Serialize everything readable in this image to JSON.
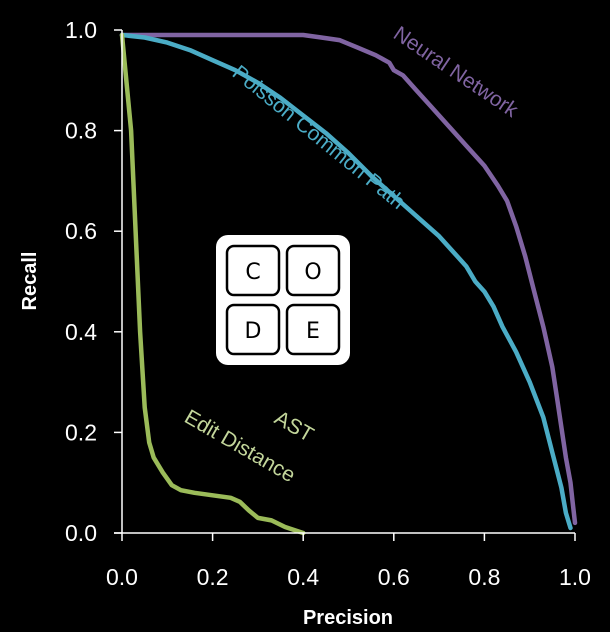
{
  "chart_data": {
    "type": "line",
    "xlabel": "Precision",
    "ylabel": "Recall",
    "xlim": [
      0,
      1
    ],
    "ylim": [
      0,
      1
    ],
    "x_ticks": [
      "0.0",
      "0.2",
      "0.4",
      "0.6",
      "0.8",
      "1.0"
    ],
    "y_ticks": [
      "0.0",
      "0.2",
      "0.4",
      "0.6",
      "0.8",
      "1.0"
    ],
    "grid": false,
    "legend": "inline labels",
    "series": [
      {
        "name": "Neural Network",
        "color": "#8064a2",
        "points": [
          [
            0.0,
            0.99
          ],
          [
            0.4,
            0.99
          ],
          [
            0.44,
            0.985
          ],
          [
            0.48,
            0.98
          ],
          [
            0.52,
            0.965
          ],
          [
            0.56,
            0.95
          ],
          [
            0.59,
            0.935
          ],
          [
            0.6,
            0.92
          ],
          [
            0.62,
            0.91
          ],
          [
            0.65,
            0.88
          ],
          [
            0.68,
            0.85
          ],
          [
            0.72,
            0.81
          ],
          [
            0.76,
            0.77
          ],
          [
            0.8,
            0.73
          ],
          [
            0.83,
            0.69
          ],
          [
            0.85,
            0.66
          ],
          [
            0.87,
            0.61
          ],
          [
            0.89,
            0.55
          ],
          [
            0.91,
            0.48
          ],
          [
            0.93,
            0.41
          ],
          [
            0.95,
            0.33
          ],
          [
            0.96,
            0.27
          ],
          [
            0.97,
            0.21
          ],
          [
            0.98,
            0.15
          ],
          [
            0.99,
            0.1
          ],
          [
            0.995,
            0.06
          ],
          [
            1.0,
            0.02
          ]
        ]
      },
      {
        "name": "Poisson Common Path",
        "color": "#4bacc6",
        "points": [
          [
            0.0,
            0.99
          ],
          [
            0.05,
            0.985
          ],
          [
            0.1,
            0.975
          ],
          [
            0.15,
            0.96
          ],
          [
            0.2,
            0.94
          ],
          [
            0.25,
            0.92
          ],
          [
            0.3,
            0.895
          ],
          [
            0.35,
            0.865
          ],
          [
            0.4,
            0.83
          ],
          [
            0.45,
            0.795
          ],
          [
            0.5,
            0.755
          ],
          [
            0.55,
            0.71
          ],
          [
            0.6,
            0.67
          ],
          [
            0.65,
            0.63
          ],
          [
            0.7,
            0.59
          ],
          [
            0.74,
            0.55
          ],
          [
            0.76,
            0.53
          ],
          [
            0.78,
            0.5
          ],
          [
            0.8,
            0.48
          ],
          [
            0.82,
            0.45
          ],
          [
            0.84,
            0.41
          ],
          [
            0.87,
            0.36
          ],
          [
            0.9,
            0.3
          ],
          [
            0.93,
            0.23
          ],
          [
            0.95,
            0.16
          ],
          [
            0.97,
            0.09
          ],
          [
            0.98,
            0.04
          ],
          [
            0.99,
            0.01
          ]
        ]
      },
      {
        "name": "AST Edit Distance",
        "color": "#9bbb59",
        "points": [
          [
            0.0,
            0.99
          ],
          [
            0.02,
            0.8
          ],
          [
            0.03,
            0.6
          ],
          [
            0.04,
            0.4
          ],
          [
            0.05,
            0.25
          ],
          [
            0.06,
            0.18
          ],
          [
            0.07,
            0.15
          ],
          [
            0.09,
            0.12
          ],
          [
            0.11,
            0.095
          ],
          [
            0.13,
            0.085
          ],
          [
            0.16,
            0.08
          ],
          [
            0.2,
            0.075
          ],
          [
            0.24,
            0.07
          ],
          [
            0.26,
            0.062
          ],
          [
            0.28,
            0.045
          ],
          [
            0.3,
            0.03
          ],
          [
            0.33,
            0.025
          ],
          [
            0.36,
            0.012
          ],
          [
            0.4,
            0.0
          ]
        ]
      }
    ],
    "annotations": [
      {
        "series": "Neural Network",
        "text": "Neural Network",
        "color": "#8064a2"
      },
      {
        "series": "Poisson Common Path",
        "text": "Poisson Common Path",
        "color": "#4bacc6"
      },
      {
        "series": "AST Edit Distance",
        "lines": [
          "AST",
          "Edit Distance"
        ],
        "color": "#c3d69b"
      }
    ]
  },
  "logo": {
    "letters": [
      "C",
      "O",
      "D",
      "E"
    ],
    "background": "#ffffff",
    "letter_color": "#000000"
  },
  "colors": {
    "background": "#000000",
    "axis": "#ffffff",
    "text": "#ffffff"
  }
}
